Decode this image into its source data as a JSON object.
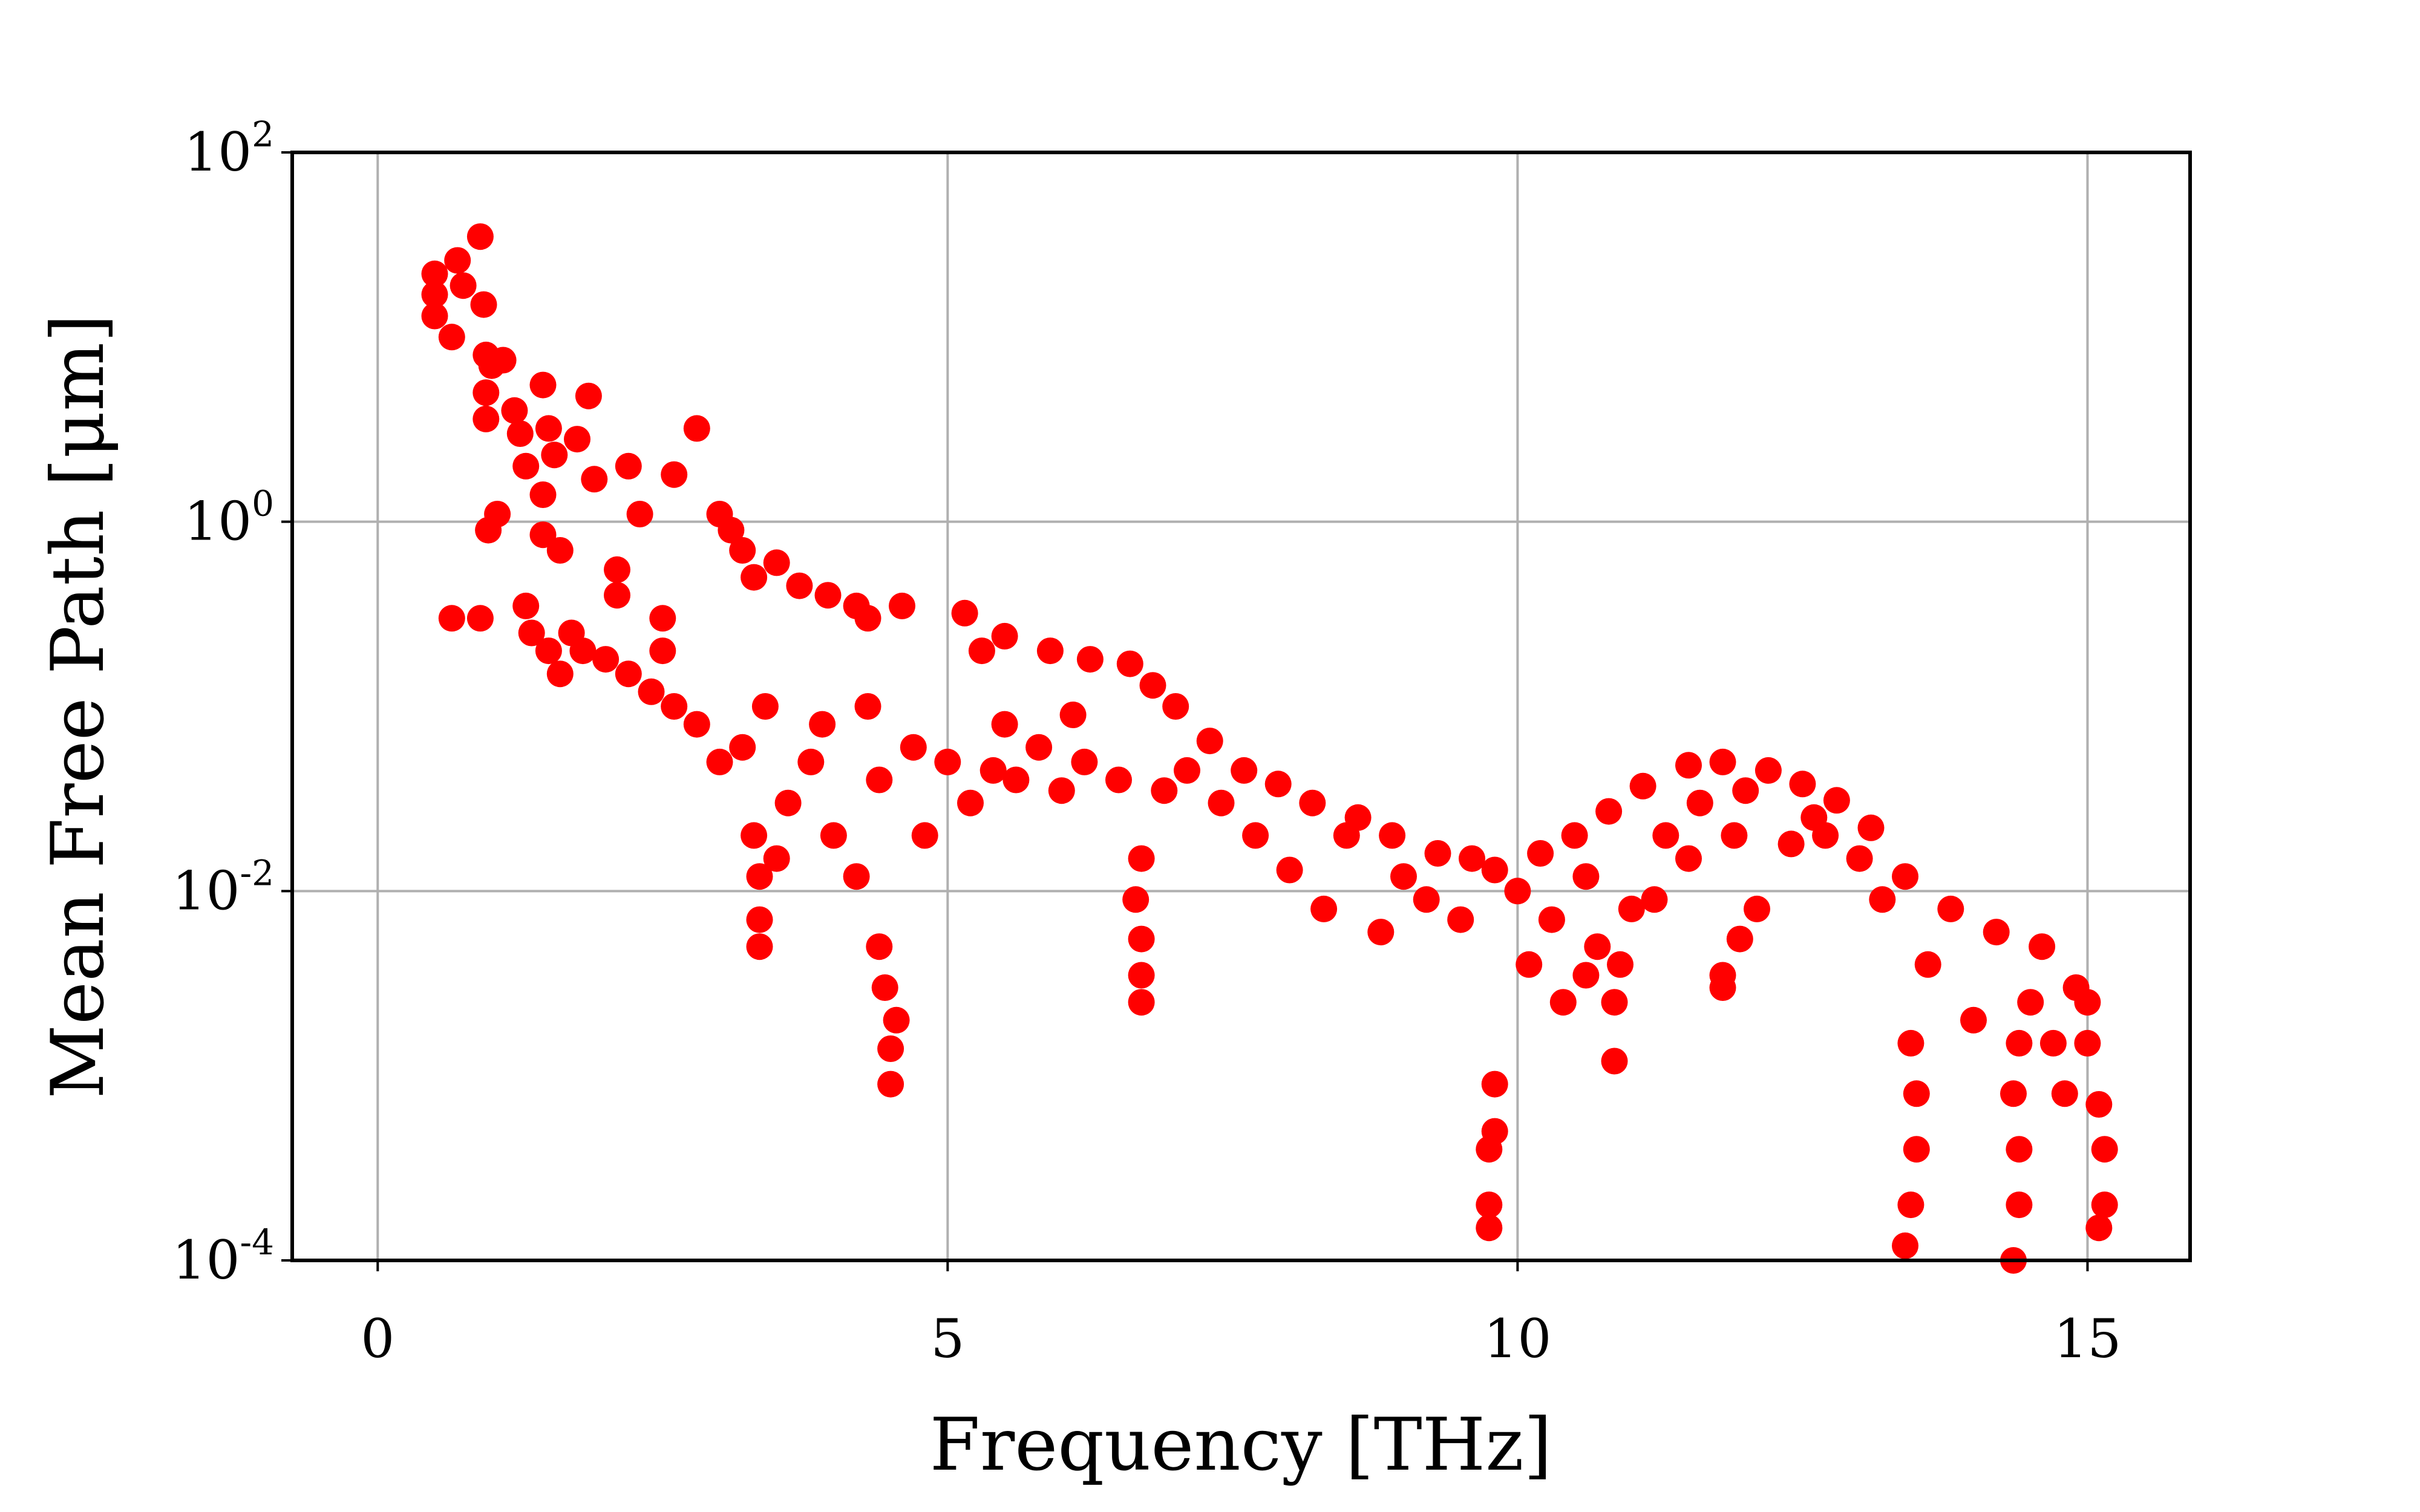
{
  "chart_data": {
    "type": "scatter",
    "xlabel": "Frequency [THz]",
    "ylabel": "Mean Free Path [μm]",
    "xlim": [
      -0.75,
      15.9
    ],
    "ylim": [
      0.0001,
      100
    ],
    "yscale": "log",
    "grid": true,
    "marker_color": "#ff0000",
    "x_ticks": [
      {
        "value": 0,
        "label": "0"
      },
      {
        "value": 5,
        "label": "5"
      },
      {
        "value": 10,
        "label": "10"
      },
      {
        "value": 15,
        "label": "15"
      }
    ],
    "y_ticks": [
      {
        "value": 100,
        "base": "10",
        "exp": "2"
      },
      {
        "value": 1,
        "base": "10",
        "exp": "0"
      },
      {
        "value": 0.01,
        "base": "10",
        "exp": "-2"
      },
      {
        "value": 0.0001,
        "base": "10",
        "exp": "-4"
      }
    ],
    "series": [
      {
        "points": [
          [
            0.5,
            22
          ],
          [
            0.5,
            17
          ],
          [
            0.5,
            13
          ],
          [
            0.65,
            10
          ],
          [
            0.7,
            26
          ],
          [
            0.75,
            19
          ],
          [
            0.9,
            35
          ],
          [
            0.93,
            15
          ],
          [
            0.9,
            0.3
          ],
          [
            0.65,
            0.3
          ],
          [
            0.95,
            8
          ],
          [
            1.0,
            7
          ],
          [
            0.95,
            5
          ],
          [
            0.95,
            3.6
          ],
          [
            1.05,
            1.1
          ],
          [
            0.97,
            0.9
          ],
          [
            1.1,
            7.5
          ],
          [
            1.2,
            4
          ],
          [
            1.25,
            3
          ],
          [
            1.3,
            2
          ],
          [
            1.3,
            0.35
          ],
          [
            1.35,
            0.25
          ],
          [
            1.45,
            5.5
          ],
          [
            1.5,
            3.2
          ],
          [
            1.55,
            2.3
          ],
          [
            1.45,
            1.4
          ],
          [
            1.45,
            0.85
          ],
          [
            1.6,
            0.7
          ],
          [
            1.5,
            0.2
          ],
          [
            1.85,
            4.8
          ],
          [
            1.75,
            2.8
          ],
          [
            1.9,
            1.7
          ],
          [
            2.1,
            0.55
          ],
          [
            2.1,
            0.4
          ],
          [
            2.2,
            2
          ],
          [
            2.3,
            1.1
          ],
          [
            2.6,
            1.8
          ],
          [
            2.8,
            3.2
          ],
          [
            2.5,
            0.3
          ],
          [
            3.1,
            0.9
          ],
          [
            3.2,
            0.7
          ],
          [
            3.3,
            0.5
          ],
          [
            3.0,
            1.1
          ],
          [
            3.5,
            0.6
          ],
          [
            3.7,
            0.45
          ],
          [
            3.95,
            0.4
          ],
          [
            4.2,
            0.35
          ],
          [
            4.3,
            0.3
          ],
          [
            4.6,
            0.35
          ],
          [
            5.15,
            0.32
          ],
          [
            5.3,
            0.2
          ],
          [
            5.5,
            0.24
          ],
          [
            5.9,
            0.2
          ],
          [
            6.25,
            0.18
          ],
          [
            6.6,
            0.17
          ],
          [
            6.8,
            0.13
          ],
          [
            7.3,
            0.065
          ],
          [
            7.6,
            0.045
          ],
          [
            7.9,
            0.038
          ],
          [
            8.2,
            0.03
          ],
          [
            8.6,
            0.025
          ],
          [
            8.9,
            0.02
          ],
          [
            9.3,
            0.016
          ],
          [
            9.6,
            0.015
          ],
          [
            9.8,
            0.013
          ],
          [
            10.2,
            0.016
          ],
          [
            10.5,
            0.02
          ],
          [
            10.8,
            0.027
          ],
          [
            11.1,
            0.037
          ],
          [
            11.5,
            0.048
          ],
          [
            11.8,
            0.05
          ],
          [
            12.2,
            0.045
          ],
          [
            12.5,
            0.038
          ],
          [
            12.8,
            0.031
          ],
          [
            13.1,
            0.022
          ],
          [
            13.4,
            0.012
          ],
          [
            13.8,
            0.008
          ],
          [
            14.2,
            0.006
          ],
          [
            14.6,
            0.005
          ],
          [
            14.9,
            0.003
          ],
          [
            15.0,
            0.0015
          ],
          [
            15.1,
            0.0007
          ],
          [
            15.15,
            0.0004
          ],
          [
            15.15,
            0.0002
          ],
          [
            15.1,
            0.00015
          ],
          [
            9.75,
            0.0002
          ],
          [
            9.75,
            0.00015
          ],
          [
            9.75,
            0.0004
          ],
          [
            9.8,
            0.0005
          ],
          [
            9.8,
            0.0009
          ],
          [
            4.5,
            0.0009
          ],
          [
            4.5,
            0.0014
          ],
          [
            4.55,
            0.002
          ],
          [
            4.45,
            0.003
          ],
          [
            4.4,
            0.005
          ],
          [
            3.35,
            0.005
          ],
          [
            3.35,
            0.007
          ],
          [
            3.35,
            0.012
          ],
          [
            3.3,
            0.02
          ],
          [
            6.7,
            0.0025
          ],
          [
            6.7,
            0.0035
          ],
          [
            6.7,
            0.0055
          ],
          [
            6.65,
            0.009
          ],
          [
            6.7,
            0.015
          ],
          [
            10.4,
            0.0025
          ],
          [
            10.6,
            0.0035
          ],
          [
            10.85,
            0.0012
          ],
          [
            10.85,
            0.0025
          ],
          [
            10.9,
            0.004
          ],
          [
            11.8,
            0.0035
          ],
          [
            11.8,
            0.003
          ],
          [
            11.95,
            0.0055
          ],
          [
            12.1,
            0.008
          ],
          [
            13.4,
            0.00012
          ],
          [
            13.45,
            0.0002
          ],
          [
            13.5,
            0.0004
          ],
          [
            13.5,
            0.0008
          ],
          [
            13.45,
            0.0015
          ],
          [
            14.35,
            0.0001
          ],
          [
            14.4,
            0.0002
          ],
          [
            14.4,
            0.0004
          ],
          [
            14.35,
            0.0008
          ],
          [
            14.4,
            0.0015
          ],
          [
            14.5,
            0.0025
          ],
          [
            13.0,
            0.015
          ],
          [
            13.2,
            0.009
          ],
          [
            12.7,
            0.02
          ],
          [
            12.4,
            0.018
          ],
          [
            11.9,
            0.02
          ],
          [
            11.5,
            0.015
          ],
          [
            11.2,
            0.009
          ],
          [
            11.0,
            0.008
          ],
          [
            10.7,
            0.005
          ],
          [
            10.3,
            0.007
          ],
          [
            10.0,
            0.01
          ],
          [
            9.2,
            0.009
          ],
          [
            8.8,
            0.006
          ],
          [
            8.3,
            0.008
          ],
          [
            8.0,
            0.013
          ],
          [
            7.7,
            0.02
          ],
          [
            7.4,
            0.03
          ],
          [
            7.1,
            0.045
          ],
          [
            6.9,
            0.035
          ],
          [
            6.5,
            0.04
          ],
          [
            6.2,
            0.05
          ],
          [
            6.0,
            0.035
          ],
          [
            5.8,
            0.06
          ],
          [
            5.6,
            0.04
          ],
          [
            5.4,
            0.045
          ],
          [
            5.2,
            0.03
          ],
          [
            5.0,
            0.05
          ],
          [
            4.8,
            0.02
          ],
          [
            4.7,
            0.06
          ],
          [
            4.4,
            0.04
          ],
          [
            4.2,
            0.012
          ],
          [
            4.0,
            0.02
          ],
          [
            3.8,
            0.05
          ],
          [
            3.6,
            0.03
          ],
          [
            3.5,
            0.015
          ],
          [
            3.2,
            0.06
          ],
          [
            3.0,
            0.05
          ],
          [
            2.8,
            0.08
          ],
          [
            2.6,
            0.1
          ],
          [
            2.4,
            0.12
          ],
          [
            2.2,
            0.15
          ],
          [
            2.0,
            0.18
          ],
          [
            1.8,
            0.2
          ],
          [
            1.7,
            0.25
          ],
          [
            1.6,
            0.15
          ],
          [
            2.5,
            0.2
          ],
          [
            3.4,
            0.1
          ],
          [
            3.9,
            0.08
          ],
          [
            4.3,
            0.1
          ],
          [
            5.5,
            0.08
          ],
          [
            6.1,
            0.09
          ],
          [
            7.0,
            0.1
          ],
          [
            8.5,
            0.02
          ],
          [
            9.0,
            0.012
          ],
          [
            9.5,
            0.007
          ],
          [
            10.1,
            0.004
          ],
          [
            10.6,
            0.012
          ],
          [
            11.3,
            0.02
          ],
          [
            11.6,
            0.03
          ],
          [
            12.0,
            0.035
          ],
          [
            12.6,
            0.025
          ],
          [
            13.6,
            0.004
          ],
          [
            14.0,
            0.002
          ],
          [
            14.7,
            0.0015
          ],
          [
            14.8,
            0.0008
          ],
          [
            15.0,
            0.0025
          ]
        ]
      }
    ]
  }
}
